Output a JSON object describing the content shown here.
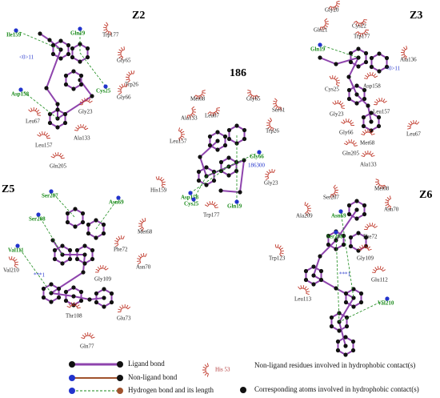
{
  "panels": [
    {
      "title": "Z2",
      "labels": [
        "Ile159",
        "Gln19",
        "Trp177",
        "<0>11",
        "Gly65",
        "Cys25",
        "Trp26",
        "Asp158",
        "Gly66",
        "Gly23",
        "Leu67",
        "Ala133",
        "Leu157",
        "Gln205"
      ]
    },
    {
      "title": "186",
      "labels": [
        "Met68",
        "Gly65",
        "Ser61",
        "Ala133",
        "Leu67",
        "Trp26",
        "Leu157",
        "Gly66",
        "186300",
        "His159",
        "Asp158",
        "Cys25",
        "Gly23",
        "Gln19",
        "Trp177"
      ]
    },
    {
      "title": "Z3",
      "labels": [
        "Gly20",
        "Cys22",
        "Gln21",
        "Trp177",
        "Gln19",
        "Ala136",
        "<0>11",
        "Asp158",
        "Cys25",
        "Leu157",
        "Gly23",
        "Gly66",
        "Met68",
        "Leu67",
        "Gln205",
        "Ala133"
      ]
    },
    {
      "title": "Z5",
      "labels": [
        "Ser207",
        "Asn69",
        "Ser208",
        "Met68",
        "Val111",
        "Phe72",
        "Asn70",
        "Val210",
        "***1",
        "Gly109",
        "Thr108",
        "Glu73",
        "Gln77"
      ]
    },
    {
      "title": "Z6",
      "labels": [
        "Met68",
        "Ser207",
        "Asn70",
        "Ala209",
        "Asn69",
        "Ser208",
        "Phe72",
        "Trp123",
        "Gly109",
        "***1",
        "Glu112",
        "Leu113",
        "Val210"
      ]
    }
  ],
  "legend": {
    "ligand_bond": "Ligand bond",
    "non_ligand_bond": "Non-ligand bond",
    "hydrogen_bond": "Hydrogen bond and its length",
    "residue_example": "His 53",
    "hydrophobic_residues": "Non-ligand residues involved in hydrophobic contact(s)",
    "hydrophobic_atoms": "Corresponding atoms involved in hydrophobic contact(s)"
  }
}
